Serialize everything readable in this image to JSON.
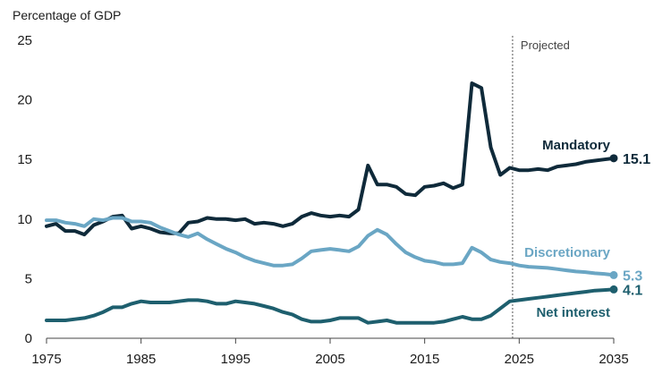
{
  "chart_data": {
    "type": "line",
    "ylabel": "Percentage of GDP",
    "ylim": [
      0,
      25
    ],
    "xlim": [
      1975,
      2035
    ],
    "y_ticks": [
      "0",
      "5",
      "10",
      "15",
      "20",
      "25"
    ],
    "x_ticks": [
      "1975",
      "1985",
      "1995",
      "2005",
      "2015",
      "2025",
      "2035"
    ],
    "projection_start": 2024.3,
    "projection_label": "Projected",
    "grid": false,
    "series": [
      {
        "name": "Mandatory",
        "color": "#0f2a3a",
        "end_value": "15.1",
        "x": [
          1975,
          1976,
          1977,
          1978,
          1979,
          1980,
          1981,
          1982,
          1983,
          1984,
          1985,
          1986,
          1987,
          1988,
          1989,
          1990,
          1991,
          1992,
          1993,
          1994,
          1995,
          1996,
          1997,
          1998,
          1999,
          2000,
          2001,
          2002,
          2003,
          2004,
          2005,
          2006,
          2007,
          2008,
          2009,
          2010,
          2011,
          2012,
          2013,
          2014,
          2015,
          2016,
          2017,
          2018,
          2019,
          2020,
          2021,
          2022,
          2023,
          2024,
          2025,
          2026,
          2027,
          2028,
          2029,
          2030,
          2031,
          2032,
          2033,
          2034,
          2035
        ],
        "values": [
          9.4,
          9.6,
          9.0,
          9.0,
          8.7,
          9.5,
          9.8,
          10.2,
          10.3,
          9.2,
          9.4,
          9.2,
          8.9,
          8.8,
          8.8,
          9.7,
          9.8,
          10.1,
          10.0,
          10.0,
          9.9,
          10.0,
          9.6,
          9.7,
          9.6,
          9.4,
          9.6,
          10.2,
          10.5,
          10.3,
          10.2,
          10.3,
          10.2,
          10.8,
          14.5,
          12.9,
          12.9,
          12.7,
          12.1,
          12.0,
          12.7,
          12.8,
          13.0,
          12.6,
          12.9,
          21.4,
          21.0,
          16.0,
          13.7,
          14.3,
          14.1,
          14.1,
          14.2,
          14.1,
          14.4,
          14.5,
          14.6,
          14.8,
          14.9,
          15.0,
          15.1
        ]
      },
      {
        "name": "Discretionary",
        "color": "#6aa6c4",
        "end_value": "5.3",
        "x": [
          1975,
          1976,
          1977,
          1978,
          1979,
          1980,
          1981,
          1982,
          1983,
          1984,
          1985,
          1986,
          1987,
          1988,
          1989,
          1990,
          1991,
          1992,
          1993,
          1994,
          1995,
          1996,
          1997,
          1998,
          1999,
          2000,
          2001,
          2002,
          2003,
          2004,
          2005,
          2006,
          2007,
          2008,
          2009,
          2010,
          2011,
          2012,
          2013,
          2014,
          2015,
          2016,
          2017,
          2018,
          2019,
          2020,
          2021,
          2022,
          2023,
          2024,
          2025,
          2026,
          2027,
          2028,
          2029,
          2030,
          2031,
          2032,
          2033,
          2034,
          2035
        ],
        "values": [
          9.9,
          9.9,
          9.7,
          9.6,
          9.4,
          10.0,
          9.9,
          10.1,
          10.1,
          9.8,
          9.8,
          9.7,
          9.3,
          9.0,
          8.7,
          8.5,
          8.8,
          8.3,
          7.9,
          7.5,
          7.2,
          6.8,
          6.5,
          6.3,
          6.1,
          6.1,
          6.2,
          6.7,
          7.3,
          7.4,
          7.5,
          7.4,
          7.3,
          7.7,
          8.6,
          9.1,
          8.7,
          7.9,
          7.2,
          6.8,
          6.5,
          6.4,
          6.2,
          6.2,
          6.3,
          7.6,
          7.2,
          6.6,
          6.4,
          6.3,
          6.1,
          6.0,
          5.95,
          5.9,
          5.8,
          5.7,
          5.6,
          5.55,
          5.45,
          5.4,
          5.3
        ]
      },
      {
        "name": "Net interest",
        "color": "#1e5f6e",
        "end_value": "4.1",
        "x": [
          1975,
          1976,
          1977,
          1978,
          1979,
          1980,
          1981,
          1982,
          1983,
          1984,
          1985,
          1986,
          1987,
          1988,
          1989,
          1990,
          1991,
          1992,
          1993,
          1994,
          1995,
          1996,
          1997,
          1998,
          1999,
          2000,
          2001,
          2002,
          2003,
          2004,
          2005,
          2006,
          2007,
          2008,
          2009,
          2010,
          2011,
          2012,
          2013,
          2014,
          2015,
          2016,
          2017,
          2018,
          2019,
          2020,
          2021,
          2022,
          2023,
          2024,
          2025,
          2026,
          2027,
          2028,
          2029,
          2030,
          2031,
          2032,
          2033,
          2034,
          2035
        ],
        "values": [
          1.5,
          1.5,
          1.5,
          1.6,
          1.7,
          1.9,
          2.2,
          2.6,
          2.6,
          2.9,
          3.1,
          3.0,
          3.0,
          3.0,
          3.1,
          3.2,
          3.2,
          3.1,
          2.9,
          2.9,
          3.1,
          3.0,
          2.9,
          2.7,
          2.5,
          2.2,
          2.0,
          1.6,
          1.4,
          1.4,
          1.5,
          1.7,
          1.7,
          1.7,
          1.3,
          1.4,
          1.5,
          1.3,
          1.3,
          1.3,
          1.3,
          1.3,
          1.4,
          1.6,
          1.8,
          1.6,
          1.6,
          1.9,
          2.5,
          3.1,
          3.2,
          3.3,
          3.4,
          3.5,
          3.6,
          3.7,
          3.8,
          3.9,
          4.0,
          4.05,
          4.1
        ]
      }
    ]
  }
}
